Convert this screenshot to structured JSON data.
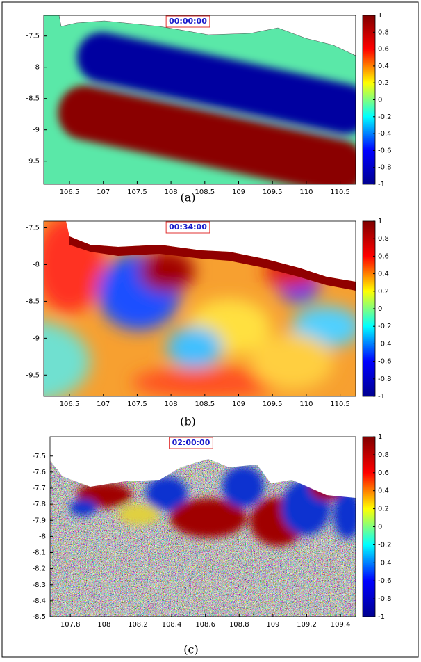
{
  "chart_data": [
    {
      "type": "heatmap",
      "title": "00:00:00",
      "caption": "(a)",
      "xlim": [
        106.12,
        110.73
      ],
      "ylim": [
        -9.87,
        -7.17
      ],
      "xticks": [
        106.5,
        107,
        107.5,
        108,
        108.5,
        109,
        109.5,
        110,
        110.5
      ],
      "yticks": [
        -7.5,
        -8,
        -8.5,
        -9,
        -9.5
      ],
      "clim": [
        -1,
        1
      ],
      "cticks": [
        1,
        0.8,
        0.6,
        0.4,
        0.2,
        0,
        -0.2,
        -0.4,
        -0.6,
        -0.8,
        -1
      ],
      "colormap": [
        "#00008f",
        "#0000ff",
        "#00ffff",
        "#ffff00",
        "#ff0000",
        "#800000"
      ]
    },
    {
      "type": "heatmap",
      "title": "00:34:00",
      "caption": "(b)",
      "xlim": [
        106.12,
        110.73
      ],
      "ylim": [
        -9.79,
        -7.41
      ],
      "xticks": [
        106.5,
        107,
        107.5,
        108,
        108.5,
        109,
        109.5,
        110,
        110.5
      ],
      "yticks": [
        -7.5,
        -8,
        -8.5,
        -9,
        -9.5
      ],
      "clim": [
        -1,
        1
      ],
      "cticks": [
        1,
        0.8,
        0.6,
        0.4,
        0.2,
        0,
        -0.2,
        -0.4,
        -0.6,
        -0.8,
        -1
      ],
      "colormap": [
        "#00008f",
        "#0000ff",
        "#00ffff",
        "#ffff00",
        "#ff0000",
        "#800000"
      ]
    },
    {
      "type": "heatmap",
      "title": "02:00:00",
      "caption": "(c)",
      "xlim": [
        107.68,
        109.49
      ],
      "ylim": [
        -8.5,
        -7.38
      ],
      "xticks": [
        107.8,
        108,
        108.2,
        108.4,
        108.6,
        108.8,
        109,
        109.2,
        109.4
      ],
      "yticks": [
        -7.5,
        -7.6,
        -7.7,
        -7.8,
        -7.9,
        -8,
        -8.1,
        -8.2,
        -8.3,
        -8.4,
        -8.5
      ],
      "clim": [
        -1,
        1
      ],
      "cticks": [
        1,
        0.8,
        0.6,
        0.4,
        0.2,
        0,
        -0.2,
        -0.4,
        -0.6,
        -0.8,
        -1
      ],
      "colormap": [
        "#00008f",
        "#0000ff",
        "#00ffff",
        "#ffff00",
        "#ff0000",
        "#800000"
      ]
    }
  ]
}
